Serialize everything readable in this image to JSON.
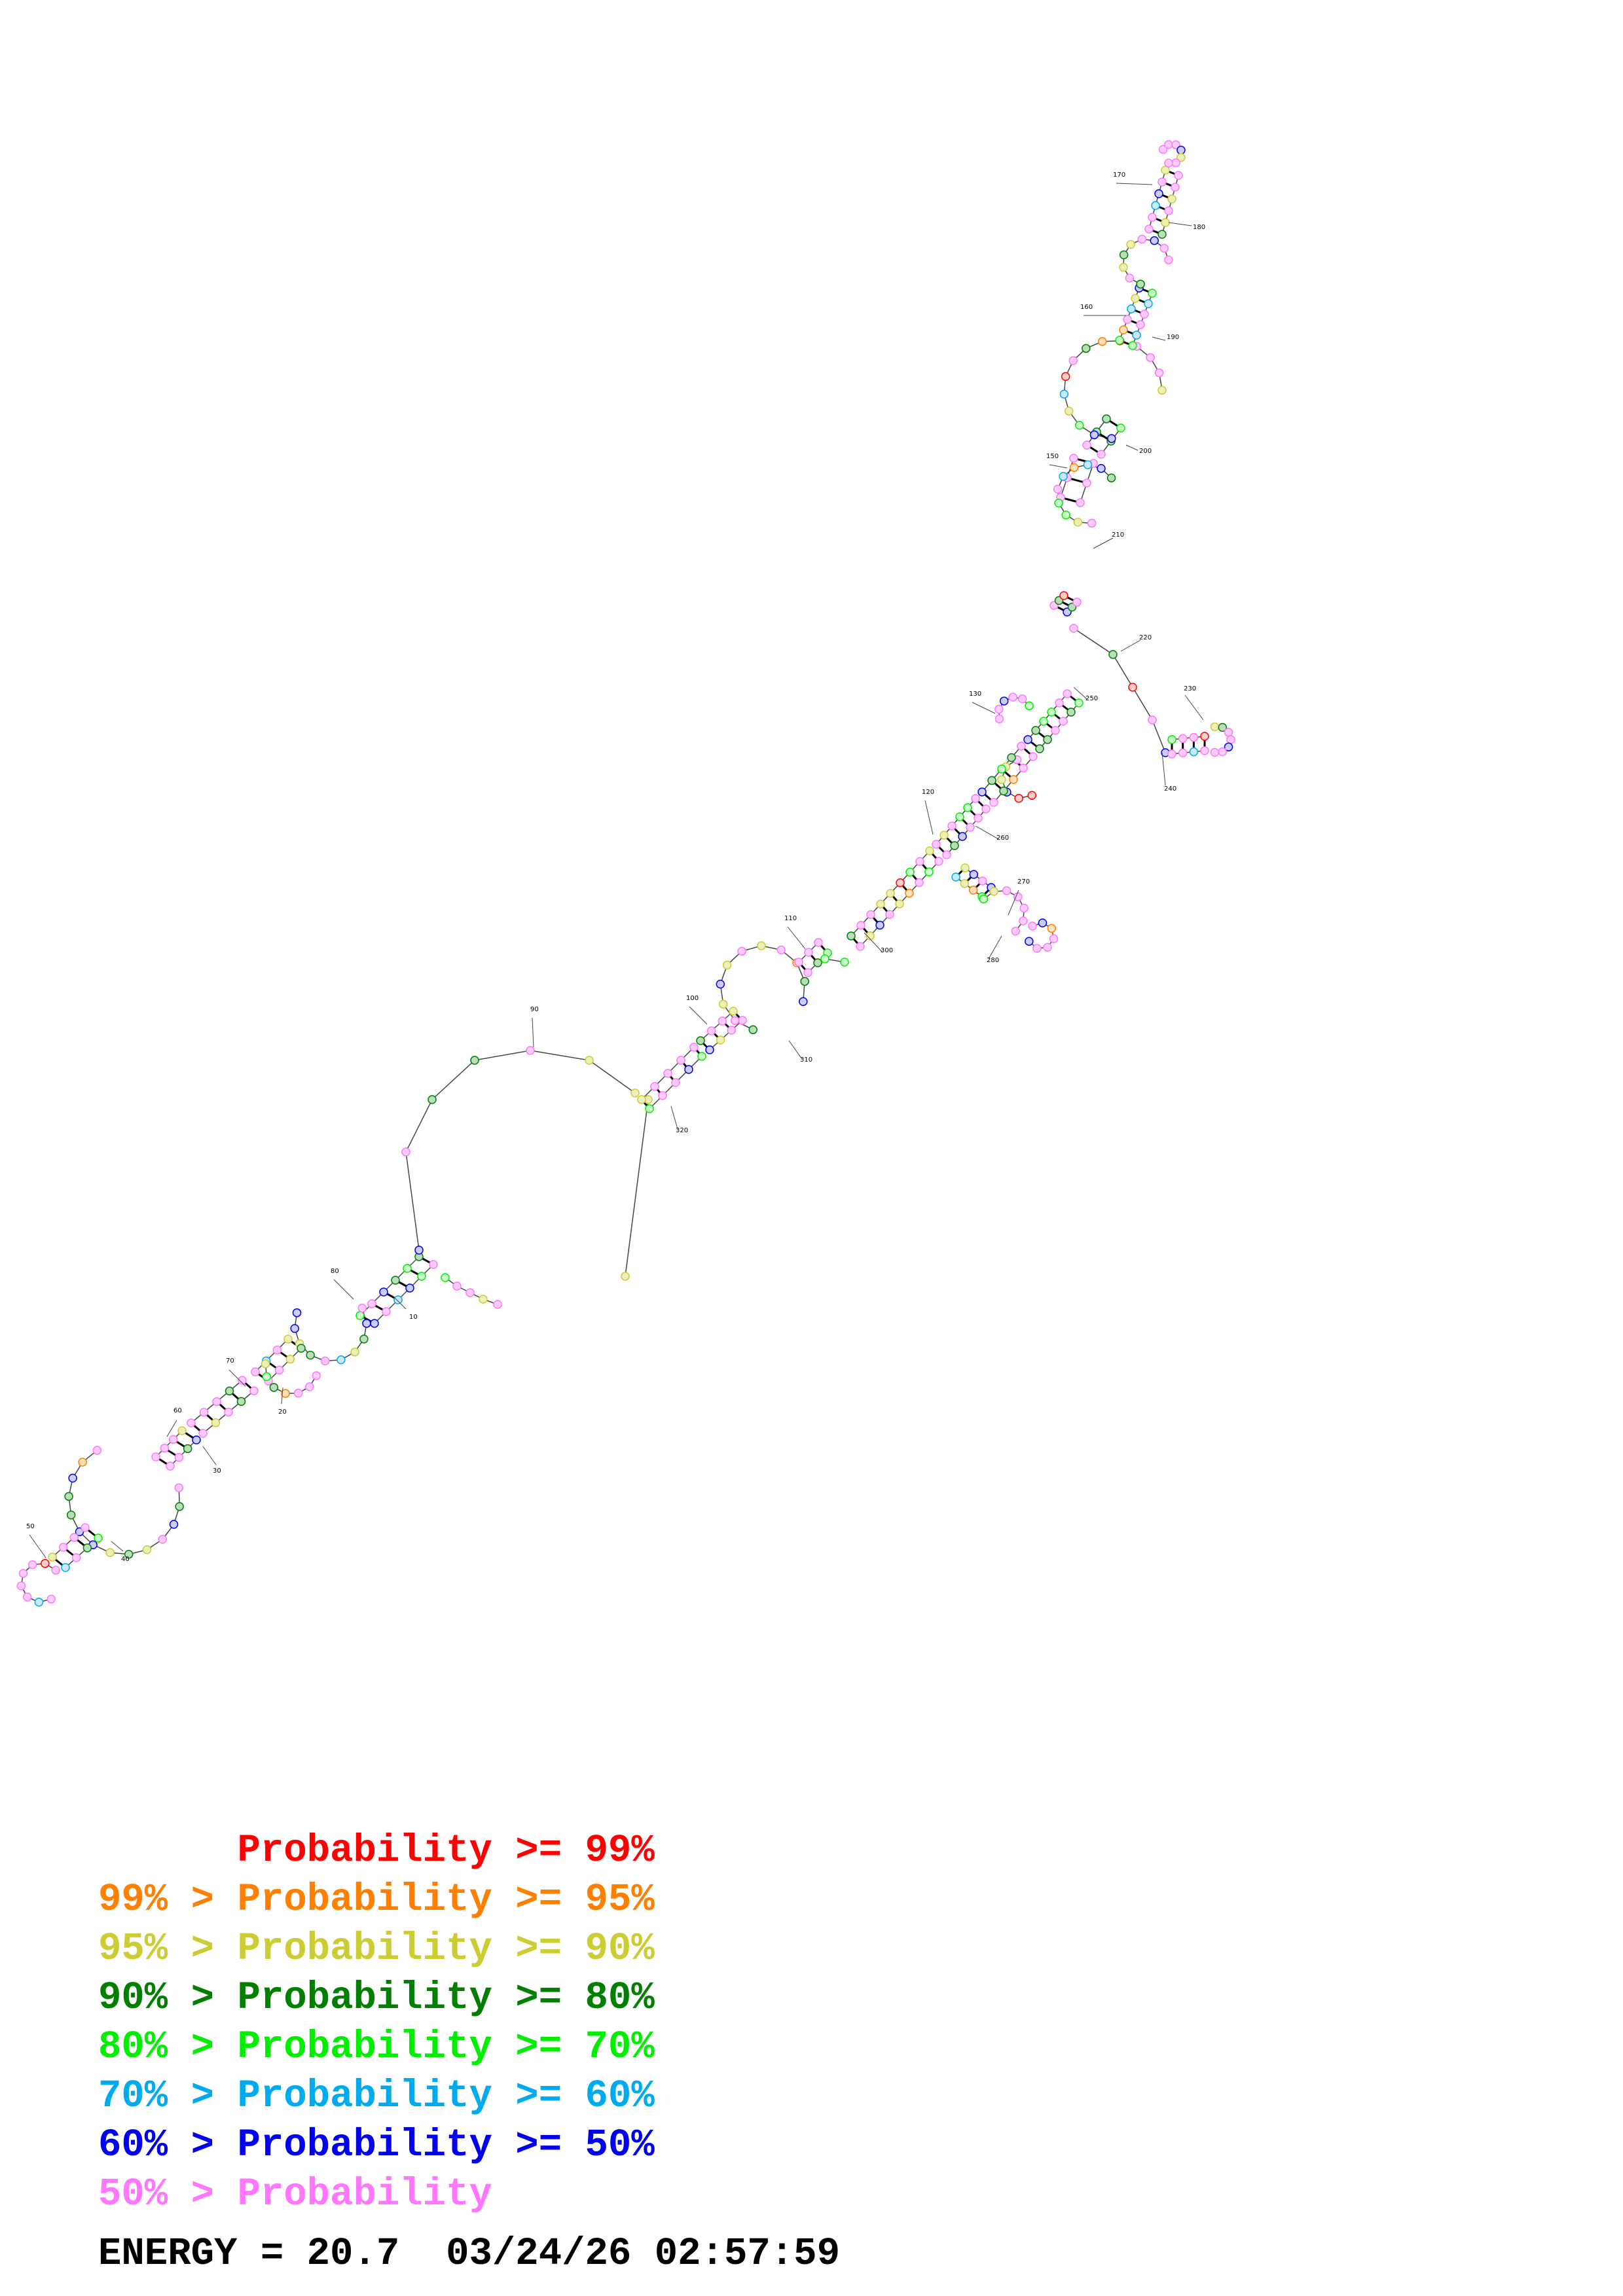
{
  "legend": [
    {
      "prefix": "",
      "label": "Probability >= 99%",
      "color": "#ff0000"
    },
    {
      "prefix": "99% > ",
      "label": "Probability >= 95%",
      "color": "#ff7f00"
    },
    {
      "prefix": "95% > ",
      "label": "Probability >= 90%",
      "color": "#cccc33"
    },
    {
      "prefix": "90% > ",
      "label": "Probability >= 80%",
      "color": "#007f00"
    },
    {
      "prefix": "80% > ",
      "label": "Probability >= 70%",
      "color": "#00ee00"
    },
    {
      "prefix": "70% > ",
      "label": "Probability >= 60%",
      "color": "#00aaee"
    },
    {
      "prefix": "60% > ",
      "label": "Probability >= 50%",
      "color": "#0000ee"
    },
    {
      "prefix": "50% > ",
      "label": "Probability",
      "color": "#ff77ff"
    }
  ],
  "footer": {
    "energy_label": "ENERGY = 20.7",
    "timestamp": "03/24/26 02:57:59"
  },
  "structure": {
    "position_labels": [
      "10",
      "20",
      "30",
      "40",
      "50",
      "60",
      "70",
      "80",
      "90",
      "100",
      "110",
      "120",
      "130",
      "150",
      "160",
      "170",
      "180",
      "190",
      "200",
      "210",
      "220",
      "230",
      "240",
      "250",
      "260",
      "270",
      "280",
      "300",
      "310",
      "320"
    ]
  }
}
